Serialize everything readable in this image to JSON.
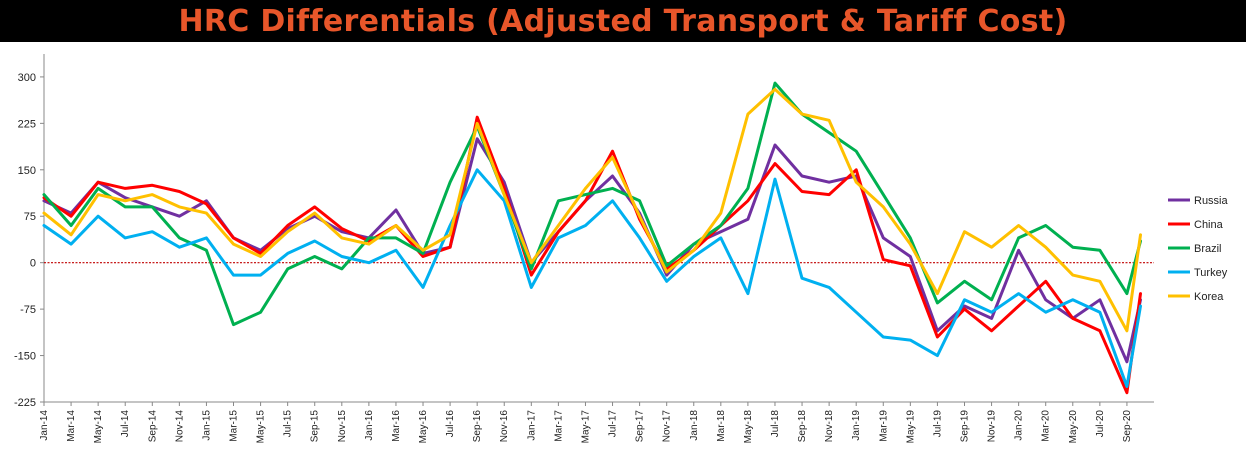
{
  "title": "HRC Differentials (Adjusted Transport & Tariff Cost)",
  "chart_data": {
    "type": "line",
    "title": "HRC Differentials (Adjusted Transport & Tariff Cost)",
    "xlabel": "",
    "ylabel": "",
    "ylim": [
      -225,
      337
    ],
    "yticks": [
      300,
      225,
      150,
      75,
      0,
      -75,
      -150,
      -225
    ],
    "grid": false,
    "zero_line": true,
    "legend_position": "right",
    "x_tick_labels": [
      "Jan-14",
      "Mar-14",
      "May-14",
      "Jul-14",
      "Sep-14",
      "Nov-14",
      "Jan-15",
      "Mar-15",
      "May-15",
      "Jul-15",
      "Sep-15",
      "Nov-15",
      "Jan-16",
      "Mar-16",
      "May-16",
      "Jul-16",
      "Sep-16",
      "Nov-16",
      "Jan-17",
      "Mar-17",
      "May-17",
      "Jul-17",
      "Sep-17",
      "Nov-17",
      "Jan-18",
      "Mar-18",
      "May-18",
      "Jul-18",
      "Sep-18",
      "Nov-18",
      "Jan-19",
      "Mar-19",
      "May-19",
      "Jul-19",
      "Sep-19",
      "Nov-19",
      "Jan-20",
      "Mar-20",
      "May-20",
      "Jul-20",
      "Sep-20"
    ],
    "x": [
      0,
      2,
      4,
      6,
      8,
      10,
      12,
      14,
      16,
      18,
      20,
      22,
      24,
      26,
      28,
      30,
      32,
      34,
      36,
      38,
      40,
      42,
      44,
      46,
      48,
      50,
      52,
      54,
      56,
      58,
      60,
      62,
      64,
      66,
      68,
      70,
      72,
      74,
      76,
      78,
      80,
      81
    ],
    "series": [
      {
        "name": "Russia",
        "color": "#7030a0",
        "values": [
          100,
          80,
          130,
          105,
          90,
          75,
          100,
          40,
          20,
          55,
          75,
          50,
          40,
          85,
          15,
          25,
          200,
          130,
          0,
          50,
          100,
          140,
          80,
          -20,
          30,
          50,
          70,
          190,
          140,
          130,
          140,
          40,
          10,
          -110,
          -70,
          -90,
          20,
          -60,
          -90,
          -60,
          -160,
          -60
        ]
      },
      {
        "name": "China",
        "color": "#ff0000",
        "values": [
          105,
          75,
          130,
          120,
          125,
          115,
          95,
          40,
          15,
          60,
          90,
          55,
          35,
          60,
          10,
          25,
          235,
          120,
          -20,
          50,
          100,
          180,
          70,
          -10,
          20,
          60,
          100,
          160,
          115,
          110,
          150,
          5,
          -5,
          -120,
          -75,
          -110,
          -70,
          -30,
          -90,
          -110,
          -210,
          -50
        ]
      },
      {
        "name": "Brazil",
        "color": "#00b050",
        "values": [
          110,
          60,
          120,
          90,
          90,
          40,
          20,
          -100,
          -80,
          -10,
          10,
          -10,
          40,
          40,
          15,
          130,
          220,
          110,
          -10,
          100,
          110,
          120,
          100,
          -5,
          30,
          60,
          120,
          290,
          240,
          210,
          180,
          110,
          40,
          -65,
          -30,
          -60,
          40,
          60,
          25,
          20,
          -50,
          35
        ]
      },
      {
        "name": "Turkey",
        "color": "#00b0f0",
        "values": [
          60,
          30,
          75,
          40,
          50,
          25,
          40,
          -20,
          -20,
          15,
          35,
          10,
          0,
          20,
          -40,
          60,
          150,
          100,
          -40,
          40,
          60,
          100,
          40,
          -30,
          10,
          40,
          -50,
          135,
          -25,
          -40,
          -80,
          -120,
          -125,
          -150,
          -60,
          -80,
          -50,
          -80,
          -60,
          -80,
          -200,
          -70
        ]
      },
      {
        "name": "Korea",
        "color": "#ffc000",
        "values": [
          80,
          45,
          110,
          100,
          110,
          90,
          80,
          30,
          10,
          50,
          80,
          40,
          30,
          60,
          20,
          45,
          225,
          110,
          0,
          60,
          120,
          170,
          75,
          -15,
          20,
          80,
          240,
          280,
          240,
          230,
          130,
          90,
          30,
          -50,
          50,
          25,
          60,
          25,
          -20,
          -30,
          -110,
          45
        ]
      }
    ]
  }
}
